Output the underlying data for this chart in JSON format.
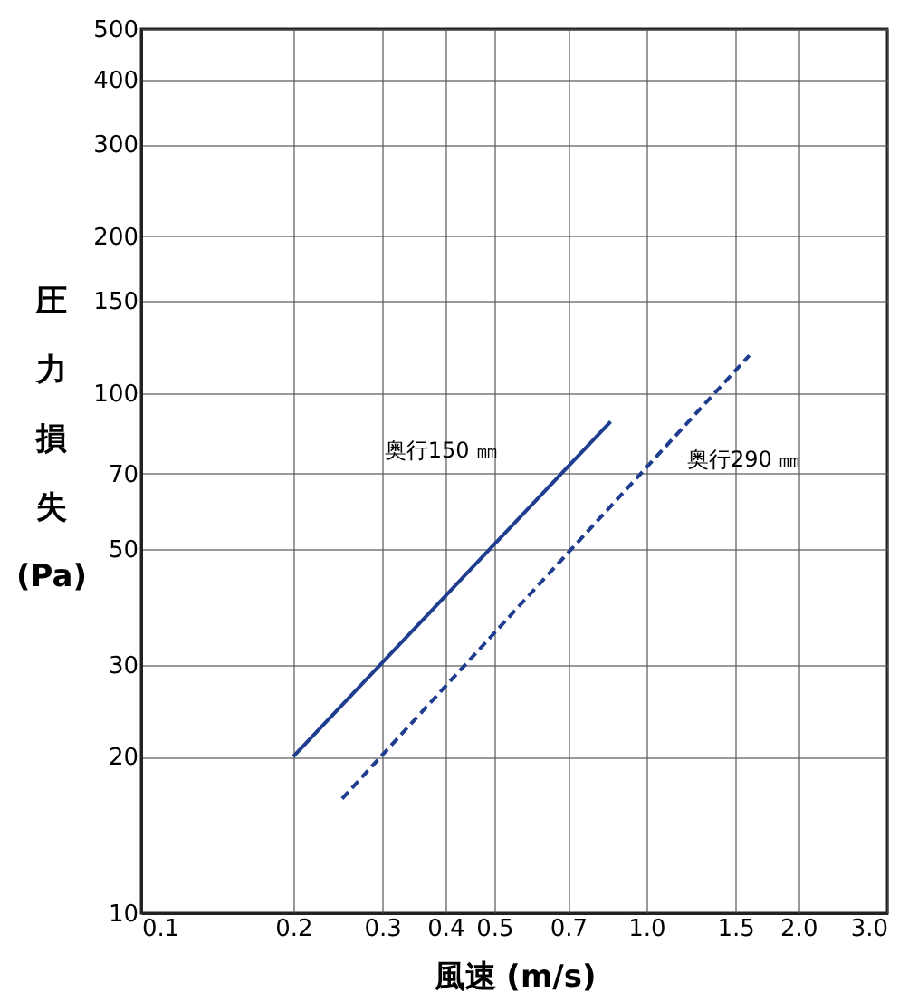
{
  "chart_data": {
    "type": "line",
    "xlabel": "風速 (m/s)",
    "ylabel": "圧力損失(Pa)",
    "log": "xy",
    "grid": true,
    "marker": "none",
    "series": [
      {
        "color": "#1f3d8f",
        "line_style": "solid",
        "x": [
          0.2,
          0.85
        ],
        "values": [
          20,
          88
        ]
      },
      {
        "color": "#1f3d8f",
        "line_style": "dashed",
        "x": [
          0.25,
          1.6
        ],
        "values": [
          16.6,
          118
        ]
      }
    ],
    "annotations": [
      {
        "text": "奥行150 ㎜",
        "x": 0.6,
        "y": 60
      },
      {
        "text": "奥行290 ㎜",
        "x": 0.98,
        "y": 70
      }
    ],
    "xlim": [
      0.1,
      3
    ],
    "ylim": [
      10,
      500
    ],
    "xticks": [
      0.1,
      0.2,
      0.3,
      0.4,
      0.5,
      0.7,
      {
        "value": 1,
        "label": "1.0"
      },
      1.5,
      {
        "value": 2,
        "label": "2.0"
      },
      {
        "value": 3,
        "label": "3.0"
      }
    ],
    "yticks": [
      10,
      20,
      30,
      50,
      70,
      100,
      150,
      200,
      300,
      400,
      500
    ]
  }
}
